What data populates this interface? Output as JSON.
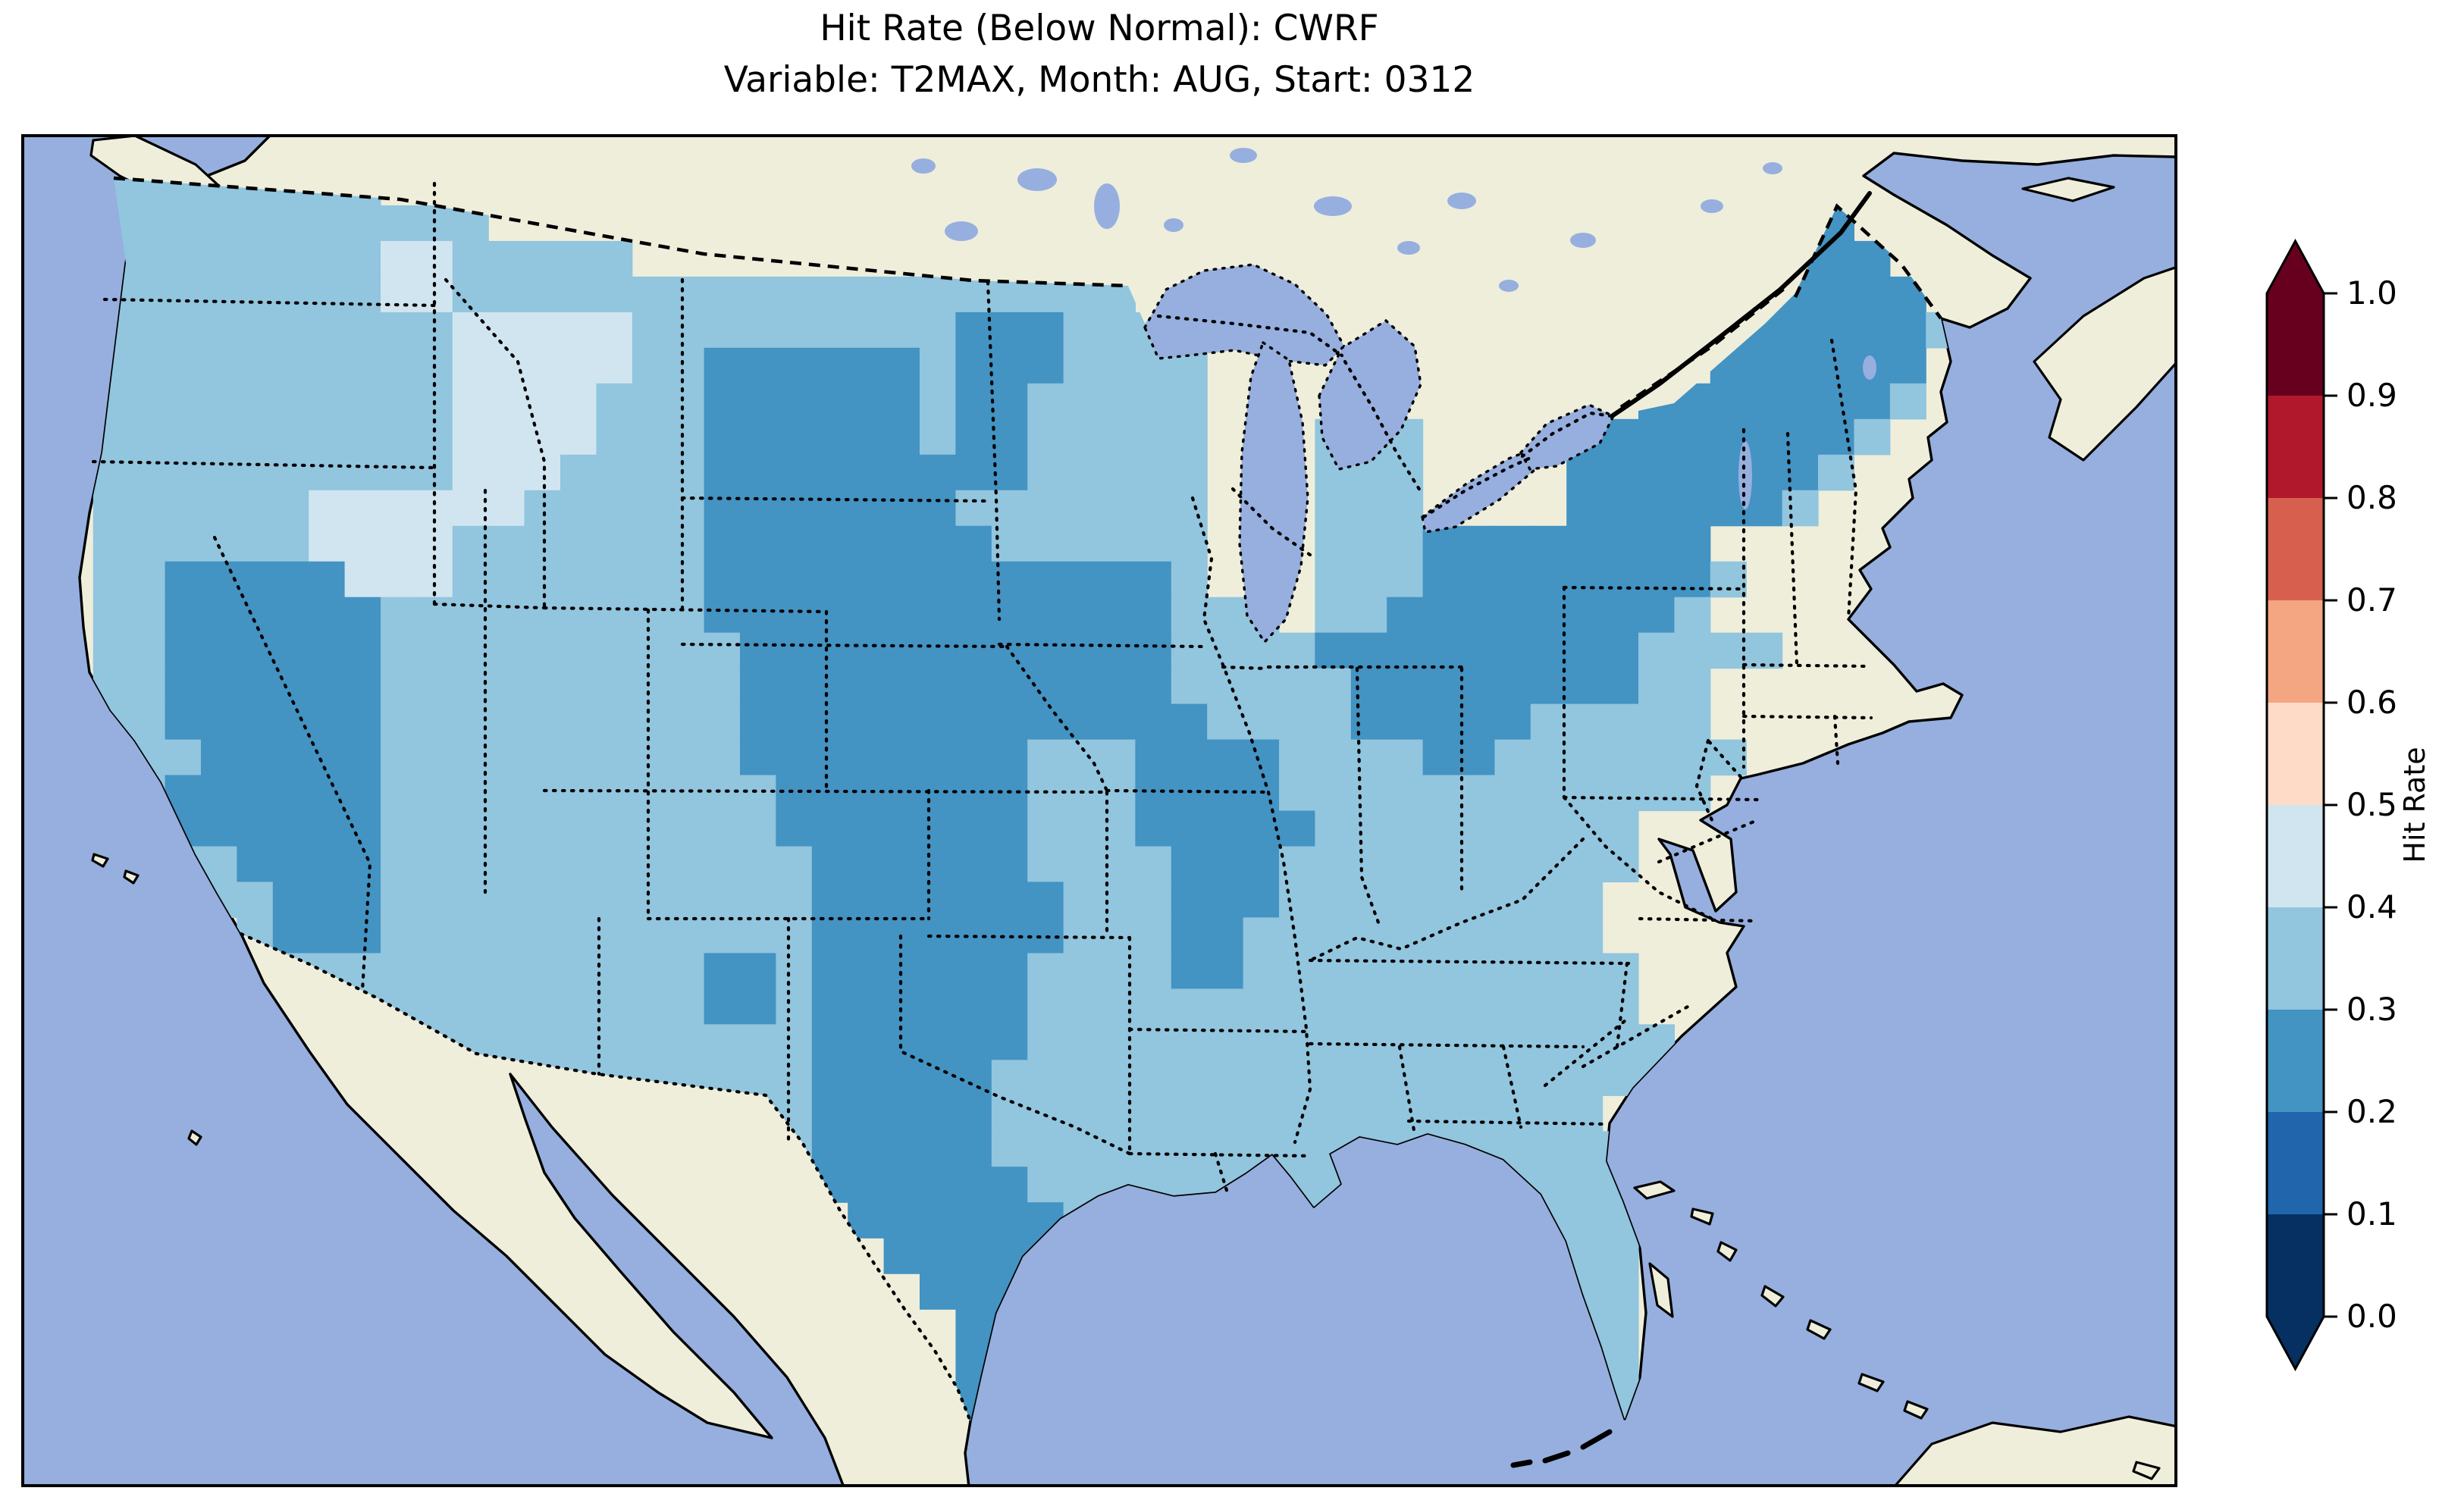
{
  "title": {
    "line1": "Hit Rate (Below Normal): CWRF",
    "line2": "Variable: T2MAX, Month: AUG, Start: 0312"
  },
  "colorbar": {
    "label": "Hit Rate",
    "range": [
      0.0,
      1.0
    ],
    "tick_labels": [
      "0.0",
      "0.1",
      "0.2",
      "0.3",
      "0.4",
      "0.5",
      "0.6",
      "0.7",
      "0.8",
      "0.9",
      "1.0"
    ],
    "bin_colors_bottom_to_top": [
      "#053061",
      "#2166ac",
      "#4393c3",
      "#92c5de",
      "#d1e5f0",
      "#fddbc7",
      "#f4a582",
      "#d6604d",
      "#b2182b",
      "#67001f"
    ],
    "extend_under_color": "#053061",
    "extend_over_color": "#67001f"
  },
  "map": {
    "colors": {
      "ocean": "#96afdf",
      "land": "#efeedb",
      "coastline": "#000000"
    },
    "features": [
      "coastlines",
      "us-canada-border-dashed",
      "us-mexico-border-dotted",
      "state-borders-dotted",
      "great-lakes",
      "st-lawrence-river",
      "vancouver-island",
      "nova-scotia",
      "prince-edward-island",
      "cuba",
      "bahamas",
      "baja-california"
    ]
  },
  "chart_data": {
    "type": "heatmap",
    "title": "Hit Rate (Below Normal): CWRF",
    "model": "CWRF",
    "metric": "Hit Rate (Below Normal)",
    "variable": "T2MAX",
    "month": "AUG",
    "start": "0312",
    "region": "Contiguous United States",
    "colormap": "RdBu_r, 10 discrete bins, extend both",
    "value_range_observed": [
      0.2,
      0.5
    ],
    "bins": {
      "2": "0.2-0.3",
      "3": "0.3-0.4",
      "4": "0.4-0.5"
    },
    "bin_colors": {
      "2": "#4393c3",
      "3": "#92c5de",
      "4": "#d1e5f0"
    },
    "no_data_char": ".",
    "grid_cols": 60,
    "grid_rows_count": 38,
    "grid_rows": [
      "............................................................",
      "..33333333..................................................",
      "..33333333333....................................22.........",
      "..333333334433333...............................2222........",
      "..33333333443333333333333333333.................22222.......",
      "..333333333344444333333333222333...............2222223......",
      "..3333333333444443322222232223333..............222222.......",
      "..3333333333444433322222232233333............22222223.......",
      "..3333333333444433322222232233333...333....222222223........",
      "..3333333333444333322222222233333...333....22222223.........",
      "..3333334444443333322222223333333...333....2222223..........",
      "..3333334444333333322222222333333...33322222222.............",
      "..3322222444333333322222222222223...333222222223............",
      "..332222223333333332222222222222333.33222222223.............",
      "..33222222333333333322222222222233332222222223333...........",
      "..332222223333333333222222222222333332222222233.............",
      "..332222223333333333222222222222233332222233333.............",
      "..3332222233333333332222222233322223333223333333............",
      "...32222223333333333322222223332222333333333333.............",
      "...322222233333333333222222233322222333333333...............",
      "....33222233333333333322222233332223333333333...............",
      ".....332223333333333332222222333222333333333................",
      "......32223333333333332222222333223333333333................",
      ".......33333333333322322222233332233333333333...............",
      "........3333333333322322222233333333333333333...............",
      ".........3333333333333222222333333333333333333..............",
      "..........3333333333332222233333333333333333333.............",
      "....................332222233333333333333333................",
      ".....................322222333333333333333333...............",
      "......................22222233333333333333333...............",
      ".......................2222223333223333333333...............",
      "........................2222222..........3333...............",
      ".........................222222...........333...............",
      "..........................22222...........333...............",
      "..........................2222.............33...............",
      "..........................22..............443...............",
      "..........................2.................3...............",
      "............................................................"
    ]
  }
}
